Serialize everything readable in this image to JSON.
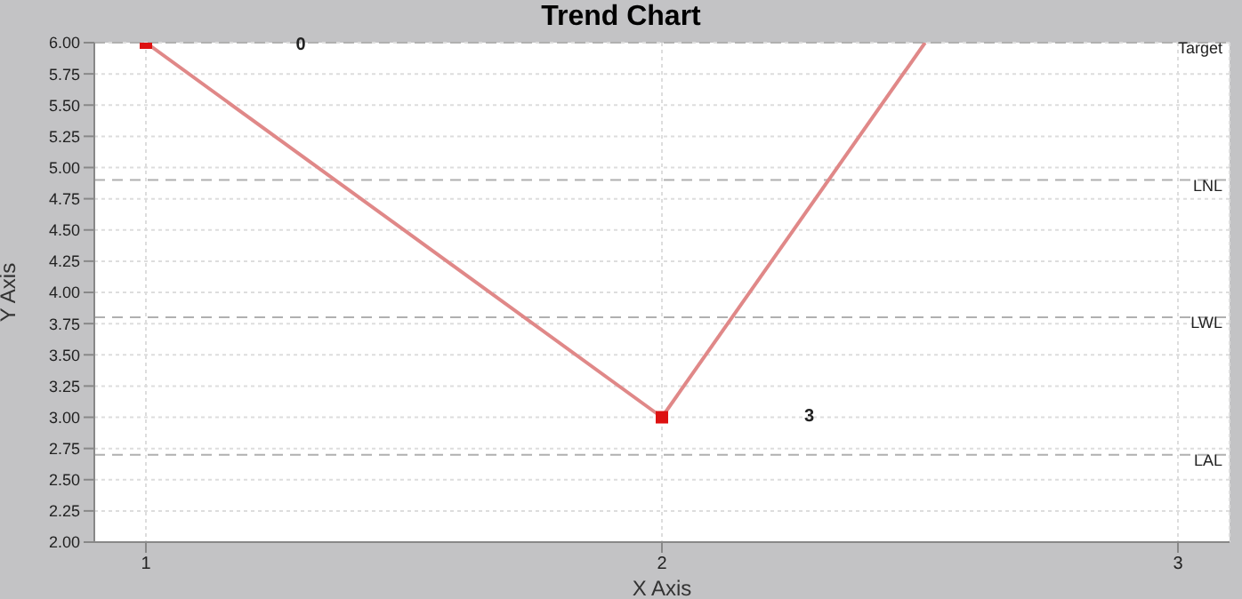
{
  "chart_data": {
    "type": "line",
    "title": "Trend Chart",
    "xlabel": "X Axis",
    "ylabel": "Y Axis",
    "x": [
      1,
      2
    ],
    "series": [
      {
        "color": "#e08888",
        "values": [
          6,
          3
        ]
      },
      {
        "color": "#e08888",
        "x": [
          2,
          2.51
        ],
        "values": [
          3,
          6
        ],
        "marker": "none"
      }
    ],
    "xlim": [
      0.9,
      3.1
    ],
    "xticks": [
      1,
      2,
      3
    ],
    "ylim": [
      2,
      6
    ],
    "yticks": [
      {
        "value": 2,
        "label": "2.00"
      },
      2.25,
      {
        "value": 2.5,
        "label": "2.50"
      },
      2.75,
      {
        "value": 3,
        "label": "3.00"
      },
      3.25,
      {
        "value": 3.5,
        "label": "3.50"
      },
      3.75,
      {
        "value": 4,
        "label": "4.00"
      },
      4.25,
      {
        "value": 4.5,
        "label": "4.50"
      },
      4.75,
      {
        "value": 5,
        "label": "5.00"
      },
      5.25,
      {
        "value": 5.5,
        "label": "5.50"
      },
      5.75,
      {
        "value": 6,
        "label": "6.00"
      }
    ],
    "ref_lines": [
      {
        "axis": "y",
        "value": 6,
        "label": "Target",
        "color": "#b0b0b0",
        "line_style": "dashed"
      },
      {
        "axis": "y",
        "value": 4.9,
        "label": "LNL",
        "color": "#b0b0b0",
        "line_style": "dashed"
      },
      {
        "axis": "y",
        "value": 3.8,
        "label": "LWL",
        "color": "#b0b0b0",
        "line_style": "dashed"
      },
      {
        "axis": "y",
        "value": 2.7,
        "label": "LAL",
        "color": "#b0b0b0",
        "line_style": "dashed"
      }
    ],
    "annotations": [
      {
        "text": "0",
        "x": 1.3,
        "y": 6
      },
      "3"
    ],
    "grid": true,
    "marker": "square",
    "line_style": "solid"
  }
}
